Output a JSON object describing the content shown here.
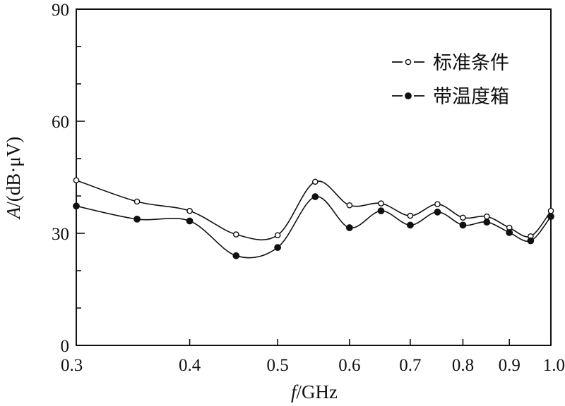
{
  "chart_data": {
    "type": "line",
    "x_scale": "log",
    "xlim": [
      0.3,
      1.0
    ],
    "ylim": [
      0,
      90
    ],
    "x_ticks": [
      "0.3",
      "0.4",
      "0.5",
      "0.6",
      "0.7",
      "0.8",
      "0.9",
      "1.0"
    ],
    "y_ticks": [
      "0",
      "30",
      "60",
      "90"
    ],
    "xlabel_italic": "f",
    "xlabel_unit": "/GHz",
    "ylabel_italic": "A",
    "ylabel_unit": "/(dB·μV)",
    "legend_position": "top-right",
    "x": [
      0.3,
      0.35,
      0.4,
      0.45,
      0.5,
      0.55,
      0.6,
      0.65,
      0.7,
      0.75,
      0.8,
      0.85,
      0.9,
      0.95,
      1.0
    ],
    "series": [
      {
        "name": "标准条件",
        "marker": "open-circle",
        "color": "#111111",
        "values": [
          44.2,
          38.5,
          36.0,
          29.7,
          29.5,
          43.8,
          37.5,
          38.0,
          34.7,
          37.8,
          34.2,
          34.5,
          31.5,
          29.2,
          36.0
        ]
      },
      {
        "name": "带温度箱",
        "marker": "filled-circle",
        "color": "#111111",
        "values": [
          37.3,
          33.8,
          33.3,
          24.0,
          26.2,
          39.8,
          31.5,
          36.0,
          32.2,
          35.7,
          32.2,
          33.0,
          30.2,
          28.0,
          34.5
        ]
      }
    ]
  }
}
